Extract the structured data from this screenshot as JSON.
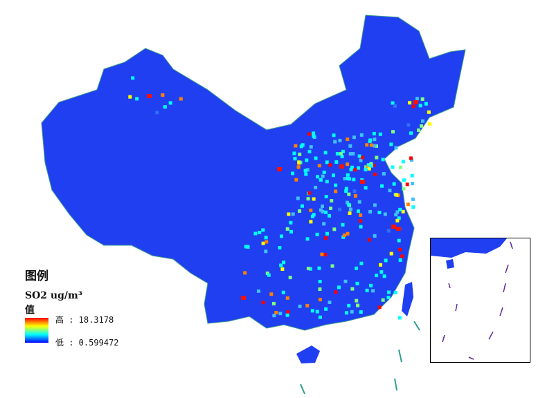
{
  "legend": {
    "title": "图例",
    "subtitle": "SO2 ug/m³",
    "value_label": "值",
    "high_label": "高 : 18.3178",
    "low_label": "低 : 0.599472",
    "high_value": 18.3178,
    "low_value": 0.599472,
    "colormap": [
      "#ff0000",
      "#ff8000",
      "#ffff00",
      "#80ff80",
      "#00ffff",
      "#0080ff",
      "#0000ff"
    ]
  },
  "colors": {
    "background_region": "#1e3cf0",
    "border": "#2a9d8f"
  }
}
